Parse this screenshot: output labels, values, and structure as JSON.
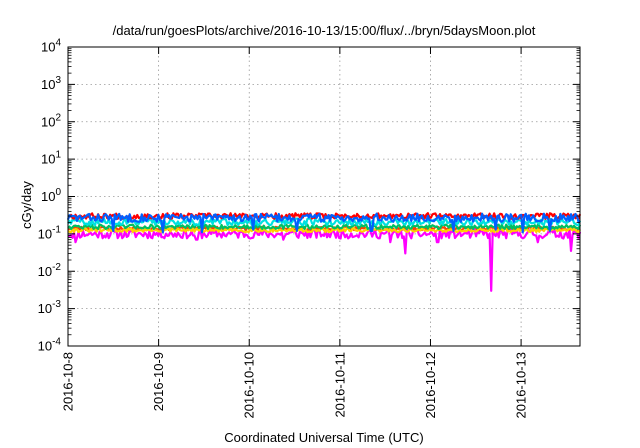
{
  "chart_data": {
    "type": "line",
    "title": "/data/run/goesPlots/archive/2016-10-13/15:00/flux/../bryn/5daysMoon.plot",
    "xlabel": "Coordinated Universal Time (UTC)",
    "ylabel": "cGy/day",
    "y_scale": "log",
    "ylim_exp": [
      -4,
      4
    ],
    "y_ticks": [
      {
        "base": "10",
        "exp": "-4"
      },
      {
        "base": "10",
        "exp": "-3"
      },
      {
        "base": "10",
        "exp": "-2"
      },
      {
        "base": "10",
        "exp": "-1"
      },
      {
        "base": "10",
        "exp": "0"
      },
      {
        "base": "10",
        "exp": "1"
      },
      {
        "base": "10",
        "exp": "2"
      },
      {
        "base": "10",
        "exp": "3"
      },
      {
        "base": "10",
        "exp": "4"
      }
    ],
    "x_ticks": [
      "2016-10-8",
      "2016-10-9",
      "2016-10-10",
      "2016-10-11",
      "2016-10-12",
      "2016-10-13"
    ],
    "x_range_days": [
      0,
      5.65
    ],
    "grid": true,
    "grid_style": "dotted",
    "series": [
      {
        "color": "#ff00ff",
        "base": 0.1,
        "jitter": 0.25,
        "seed": 11,
        "dips": [
          [
            0.08,
            0.06
          ],
          [
            1.42,
            0.07
          ],
          [
            2.38,
            0.07
          ],
          [
            3.55,
            0.06
          ],
          [
            3.72,
            0.03
          ],
          [
            4.08,
            0.06
          ],
          [
            4.67,
            0.003
          ],
          [
            5.18,
            0.06
          ],
          [
            5.55,
            0.035
          ]
        ]
      },
      {
        "color": "#ff4000",
        "base": 0.14,
        "jitter": 0.1,
        "seed": 23,
        "dips": []
      },
      {
        "color": "#ffd000",
        "base": 0.125,
        "jitter": 0.1,
        "seed": 31,
        "dips": []
      },
      {
        "color": "#00c060",
        "base": 0.155,
        "jitter": 0.12,
        "seed": 47,
        "dips": []
      },
      {
        "color": "#00e0e0",
        "base": 0.21,
        "jitter": 0.18,
        "seed": 59,
        "dips": []
      },
      {
        "color": "#ff0000",
        "base": 0.3,
        "jitter": 0.15,
        "seed": 67,
        "dips": []
      },
      {
        "color": "#0060ff",
        "base": 0.27,
        "jitter": 0.22,
        "seed": 83,
        "dips": [
          [
            0.5,
            0.12
          ],
          [
            1.05,
            0.11
          ],
          [
            1.48,
            0.11
          ],
          [
            2.05,
            0.13
          ],
          [
            2.52,
            0.12
          ],
          [
            3.35,
            0.12
          ],
          [
            4.25,
            0.12
          ],
          [
            4.72,
            0.13
          ],
          [
            5.02,
            0.11
          ],
          [
            5.32,
            0.12
          ]
        ]
      }
    ]
  }
}
